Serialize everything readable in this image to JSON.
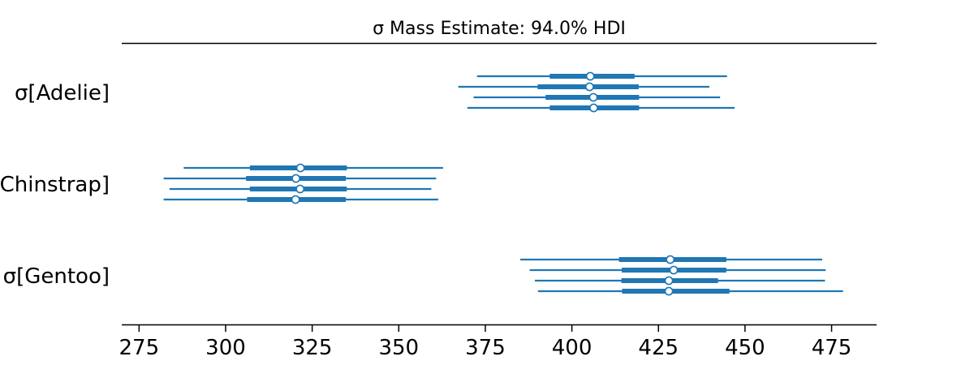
{
  "chart_data": {
    "type": "forest",
    "title": "σ Mass Estimate: 94.0% HDI",
    "xlim": [
      270,
      488
    ],
    "xticks": [
      275,
      300,
      325,
      350,
      375,
      400,
      425,
      450,
      475
    ],
    "colors": {
      "series": "#1f77b4",
      "axis": "#000000",
      "marker_fill": "#ffffff"
    },
    "categories": [
      {
        "label": "σ[Adelie]",
        "chains": [
          {
            "hdi": [
              372.6,
              444.8
            ],
            "iqr": [
              393.6,
              418.1
            ],
            "median": 405.3
          },
          {
            "hdi": [
              367.2,
              439.7
            ],
            "iqr": [
              390.1,
              419.3
            ],
            "median": 405.1
          },
          {
            "hdi": [
              371.6,
              442.8
            ],
            "iqr": [
              392.4,
              419.4
            ],
            "median": 406.2
          },
          {
            "hdi": [
              369.8,
              447.0
            ],
            "iqr": [
              393.6,
              419.4
            ],
            "median": 406.3
          }
        ]
      },
      {
        "label": "σ[Chinstrap]",
        "chains": [
          {
            "hdi": [
              287.9,
              362.8
            ],
            "iqr": [
              307.0,
              335.0
            ],
            "median": 321.6
          },
          {
            "hdi": [
              282.1,
              360.8
            ],
            "iqr": [
              305.9,
              334.7
            ],
            "median": 320.3
          },
          {
            "hdi": [
              283.8,
              359.4
            ],
            "iqr": [
              307.0,
              335.0
            ],
            "median": 321.5
          },
          {
            "hdi": [
              282.1,
              361.4
            ],
            "iqr": [
              306.2,
              334.7
            ],
            "median": 320.2
          }
        ]
      },
      {
        "label": "σ[Gentoo]",
        "chains": [
          {
            "hdi": [
              385.1,
              472.3
            ],
            "iqr": [
              413.6,
              444.6
            ],
            "median": 428.4
          },
          {
            "hdi": [
              387.8,
              473.3
            ],
            "iqr": [
              414.4,
              444.6
            ],
            "median": 429.4
          },
          {
            "hdi": [
              389.3,
              473.1
            ],
            "iqr": [
              414.3,
              442.2
            ],
            "median": 428.0
          },
          {
            "hdi": [
              390.2,
              478.3
            ],
            "iqr": [
              414.5,
              445.5
            ],
            "median": 428.0
          }
        ]
      }
    ]
  }
}
